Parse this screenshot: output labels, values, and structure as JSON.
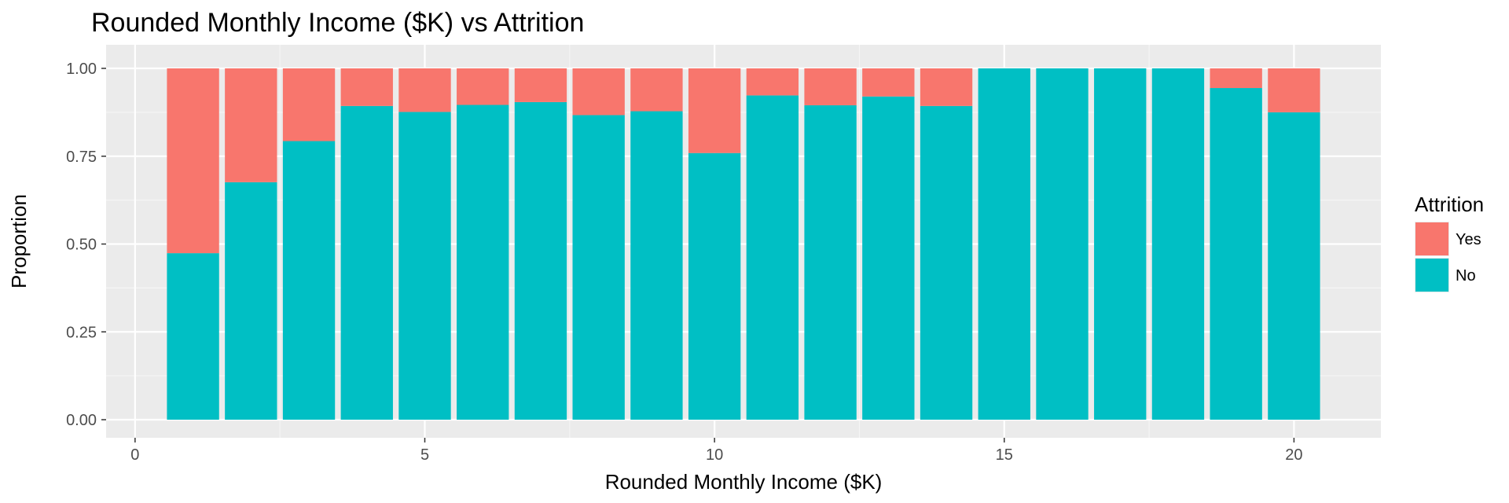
{
  "chart_data": {
    "type": "bar",
    "stacked": true,
    "normalized": true,
    "title": "Rounded Monthly Income ($K) vs Attrition",
    "xlabel": "Rounded Monthly Income ($K)",
    "ylabel": "Proportion",
    "xlim": [
      -0.5,
      21.5
    ],
    "ylim": [
      0,
      1
    ],
    "x_ticks": [
      0,
      5,
      10,
      15,
      20
    ],
    "x_tick_labels": [
      "0",
      "5",
      "10",
      "15",
      "20"
    ],
    "y_ticks": [
      0,
      0.25,
      0.5,
      0.75,
      1.0
    ],
    "y_tick_labels": [
      "0.00",
      "0.25",
      "0.50",
      "0.75",
      "1.00"
    ],
    "grid": true,
    "x": [
      1,
      2,
      3,
      4,
      5,
      6,
      7,
      8,
      9,
      10,
      11,
      12,
      13,
      14,
      15,
      16,
      17,
      18,
      19,
      20
    ],
    "series": [
      {
        "name": "Yes",
        "color": "#F8766D",
        "values": [
          0.526,
          0.324,
          0.207,
          0.107,
          0.124,
          0.104,
          0.096,
          0.133,
          0.122,
          0.241,
          0.077,
          0.105,
          0.08,
          0.107,
          0.0,
          0.0,
          0.0,
          0.0,
          0.056,
          0.125
        ]
      },
      {
        "name": "No",
        "color": "#00BFC4",
        "values": [
          0.474,
          0.676,
          0.793,
          0.893,
          0.876,
          0.896,
          0.904,
          0.867,
          0.878,
          0.759,
          0.923,
          0.895,
          0.92,
          0.893,
          1.0,
          1.0,
          1.0,
          1.0,
          0.944,
          0.875
        ]
      }
    ],
    "legend": {
      "title": "Attrition",
      "position": "right"
    }
  },
  "colors": {
    "panel_background": "#EBEBEB",
    "grid_major": "#FFFFFF",
    "grid_minor": "#F5F5F5",
    "axis_tick": "#333333",
    "yes": "#F8766D",
    "no": "#00BFC4"
  }
}
